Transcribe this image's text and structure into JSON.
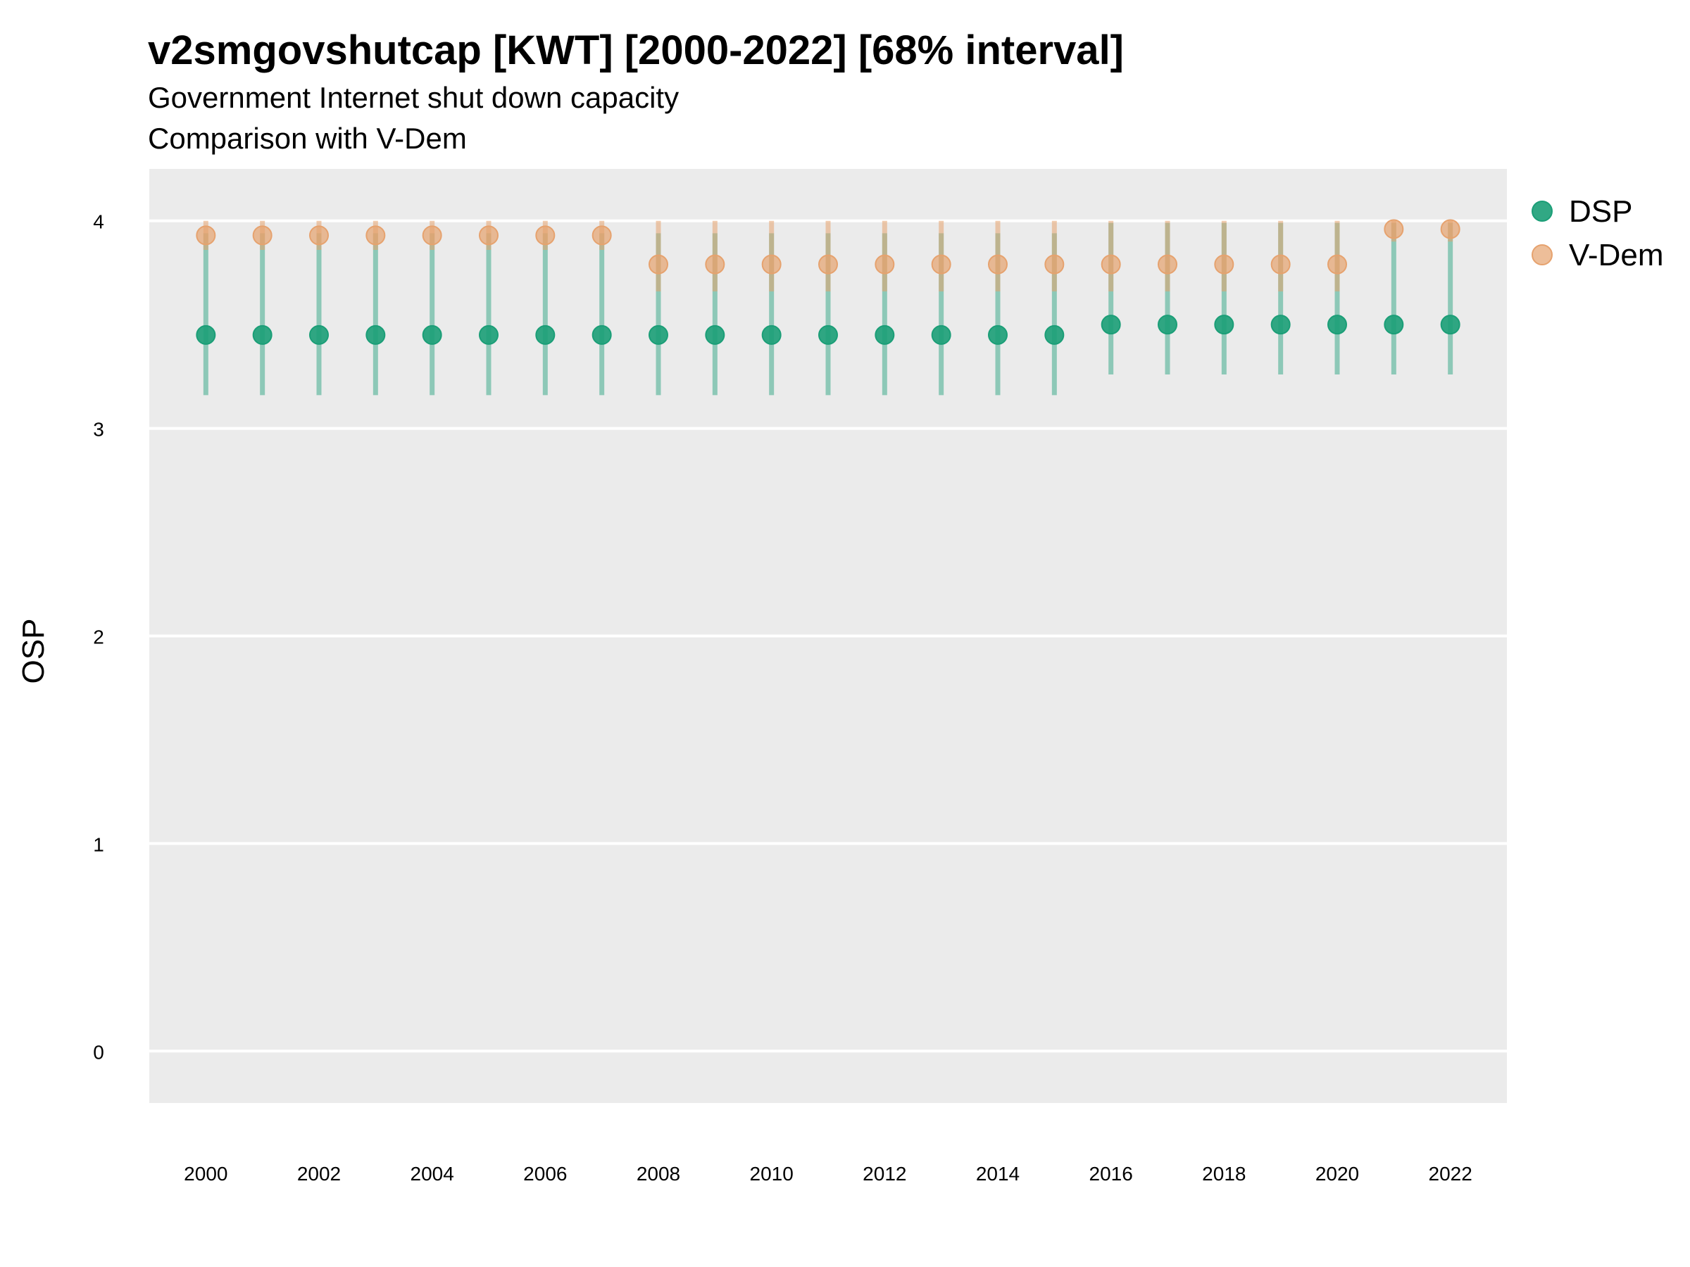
{
  "title": "v2smgovshutcap [KWT] [2000-2022] [68% interval]",
  "subtitle_lines": [
    "Government Internet shut down capacity",
    "Comparison with V-Dem"
  ],
  "chart_data": {
    "type": "scatter",
    "title": "v2smgovshutcap [KWT] [2000-2022] [68% interval]",
    "subtitle": "Government Internet shut down capacity\nComparison with V-Dem",
    "xlabel": "",
    "ylabel": "OSP",
    "xlim": [
      1999,
      2023
    ],
    "ylim": [
      -0.25,
      4.25
    ],
    "x_ticks": [
      2000,
      2002,
      2004,
      2006,
      2008,
      2010,
      2012,
      2014,
      2016,
      2018,
      2020,
      2022
    ],
    "y_ticks": [
      0,
      1,
      2,
      3,
      4
    ],
    "grid": true,
    "legend_position": "right",
    "x": [
      2000,
      2001,
      2002,
      2003,
      2004,
      2005,
      2006,
      2007,
      2008,
      2009,
      2010,
      2011,
      2012,
      2013,
      2014,
      2015,
      2016,
      2017,
      2018,
      2019,
      2020,
      2021,
      2022
    ],
    "series": [
      {
        "name": "DSP",
        "color": "#1b9e77",
        "values": [
          3.45,
          3.45,
          3.45,
          3.45,
          3.45,
          3.45,
          3.45,
          3.45,
          3.45,
          3.45,
          3.45,
          3.45,
          3.45,
          3.45,
          3.45,
          3.45,
          3.5,
          3.5,
          3.5,
          3.5,
          3.5,
          3.5,
          3.5
        ],
        "lower": [
          3.16,
          3.16,
          3.16,
          3.16,
          3.16,
          3.16,
          3.16,
          3.16,
          3.16,
          3.16,
          3.16,
          3.16,
          3.16,
          3.16,
          3.16,
          3.16,
          3.26,
          3.26,
          3.26,
          3.26,
          3.26,
          3.26,
          3.26
        ],
        "upper": [
          3.94,
          3.94,
          3.94,
          3.94,
          3.94,
          3.94,
          3.94,
          3.94,
          3.94,
          3.94,
          3.94,
          3.94,
          3.94,
          3.94,
          3.94,
          3.94,
          3.99,
          3.99,
          3.99,
          3.99,
          3.99,
          3.99,
          3.99
        ]
      },
      {
        "name": "V-Dem",
        "color": "#e6a26e",
        "values": [
          3.93,
          3.93,
          3.93,
          3.93,
          3.93,
          3.93,
          3.93,
          3.93,
          3.79,
          3.79,
          3.79,
          3.79,
          3.79,
          3.79,
          3.79,
          3.79,
          3.79,
          3.79,
          3.79,
          3.79,
          3.79,
          3.96,
          3.96
        ],
        "lower": [
          3.86,
          3.86,
          3.86,
          3.86,
          3.86,
          3.86,
          3.86,
          3.86,
          3.66,
          3.66,
          3.66,
          3.66,
          3.66,
          3.66,
          3.66,
          3.66,
          3.66,
          3.66,
          3.66,
          3.66,
          3.66,
          3.9,
          3.9
        ],
        "upper": [
          4.0,
          4.0,
          4.0,
          4.0,
          4.0,
          4.0,
          4.0,
          4.0,
          4.0,
          4.0,
          4.0,
          4.0,
          4.0,
          4.0,
          4.0,
          4.0,
          4.0,
          4.0,
          4.0,
          4.0,
          4.0,
          4.0,
          4.0
        ]
      }
    ]
  }
}
